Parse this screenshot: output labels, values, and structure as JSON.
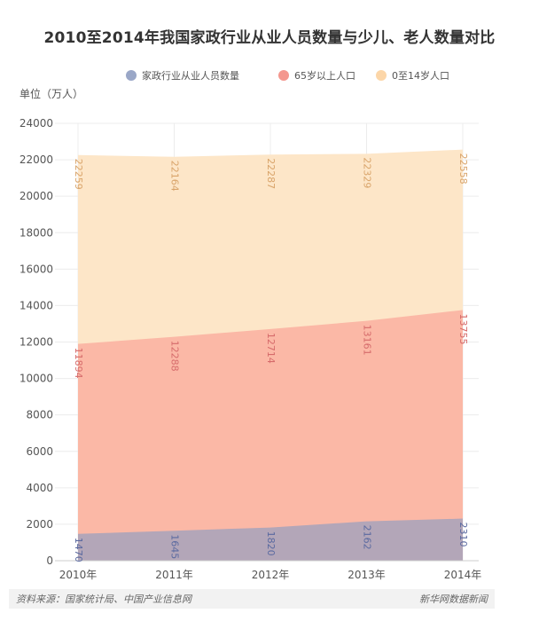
{
  "title": "2010至2014年我国家政行业从业人员数量与少儿、老人数量对比",
  "source": "资料来源：国家统计局、中国产业信息网",
  "brand": "新华网数据新闻",
  "chart_data": {
    "type": "area",
    "stacking": "none",
    "categories": [
      "2010年",
      "2011年",
      "2012年",
      "2013年",
      "2014年"
    ],
    "ylabel": "单位（万人）",
    "ylim": [
      0,
      24000
    ],
    "yticks": [
      0,
      2000,
      4000,
      6000,
      8000,
      10000,
      12000,
      14000,
      16000,
      18000,
      20000,
      22000,
      24000
    ],
    "grid": true,
    "legend_position": "top-right",
    "series": [
      {
        "name": "0至14岁人口",
        "values": [
          22259,
          22164,
          22287,
          22329,
          22558
        ],
        "color": "#fde6c8",
        "marker": "#fcd6a8",
        "label_color": "#d9a46a"
      },
      {
        "name": "65岁以上人口",
        "values": [
          11894,
          12288,
          12714,
          13161,
          13755
        ],
        "color": "#fbb8a6",
        "marker": "#f4978e",
        "label_color": "#d66b6b"
      },
      {
        "name": "家政行业从业人员数量",
        "values": [
          1470,
          1645,
          1820,
          2162,
          2310
        ],
        "color": "#b3a6b8",
        "marker": "#9aa7c7",
        "label_color": "#5b6aa0"
      }
    ],
    "legend_order": [
      "家政行业从业人员数量",
      "65岁以上人口",
      "0至14岁人口"
    ]
  }
}
